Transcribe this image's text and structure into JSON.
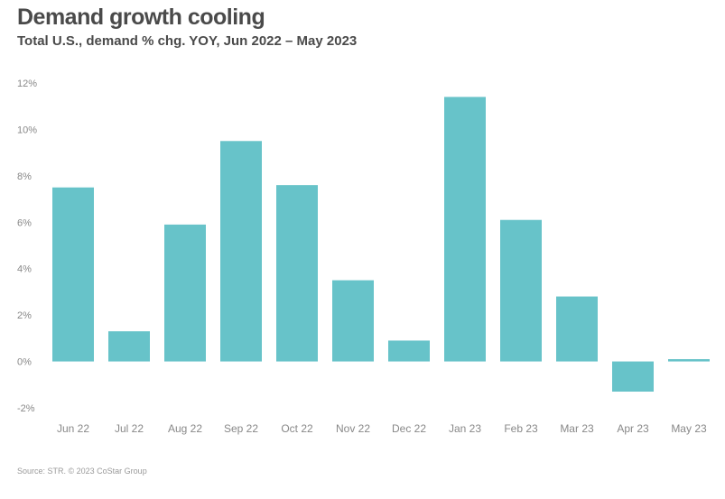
{
  "title": "Demand growth cooling",
  "subtitle": "Total U.S., demand % chg. YOY, Jun 2022 – May 2023",
  "source": "Source: STR. © 2023 CoStar Group",
  "colors": {
    "bar": "#67c3c9",
    "axis_text": "#888888",
    "title": "#4a4a4a"
  },
  "chart_data": {
    "type": "bar",
    "categories": [
      "Jun 22",
      "Jul 22",
      "Aug 22",
      "Sep 22",
      "Oct 22",
      "Nov 22",
      "Dec 22",
      "Jan 23",
      "Feb 23",
      "Mar 23",
      "Apr 23",
      "May 23"
    ],
    "values": [
      7.5,
      1.3,
      5.9,
      9.5,
      7.6,
      3.5,
      0.9,
      11.4,
      6.1,
      2.8,
      -1.3,
      0.1
    ],
    "ylim": [
      -2,
      12
    ],
    "yticks": [
      12,
      10,
      8,
      6,
      4,
      2,
      0,
      -2
    ],
    "ytick_labels": [
      "12%",
      "10%",
      "8%",
      "6%",
      "4%",
      "2%",
      "0%",
      "-2%"
    ],
    "grid": false,
    "xlabel": "",
    "ylabel": ""
  }
}
